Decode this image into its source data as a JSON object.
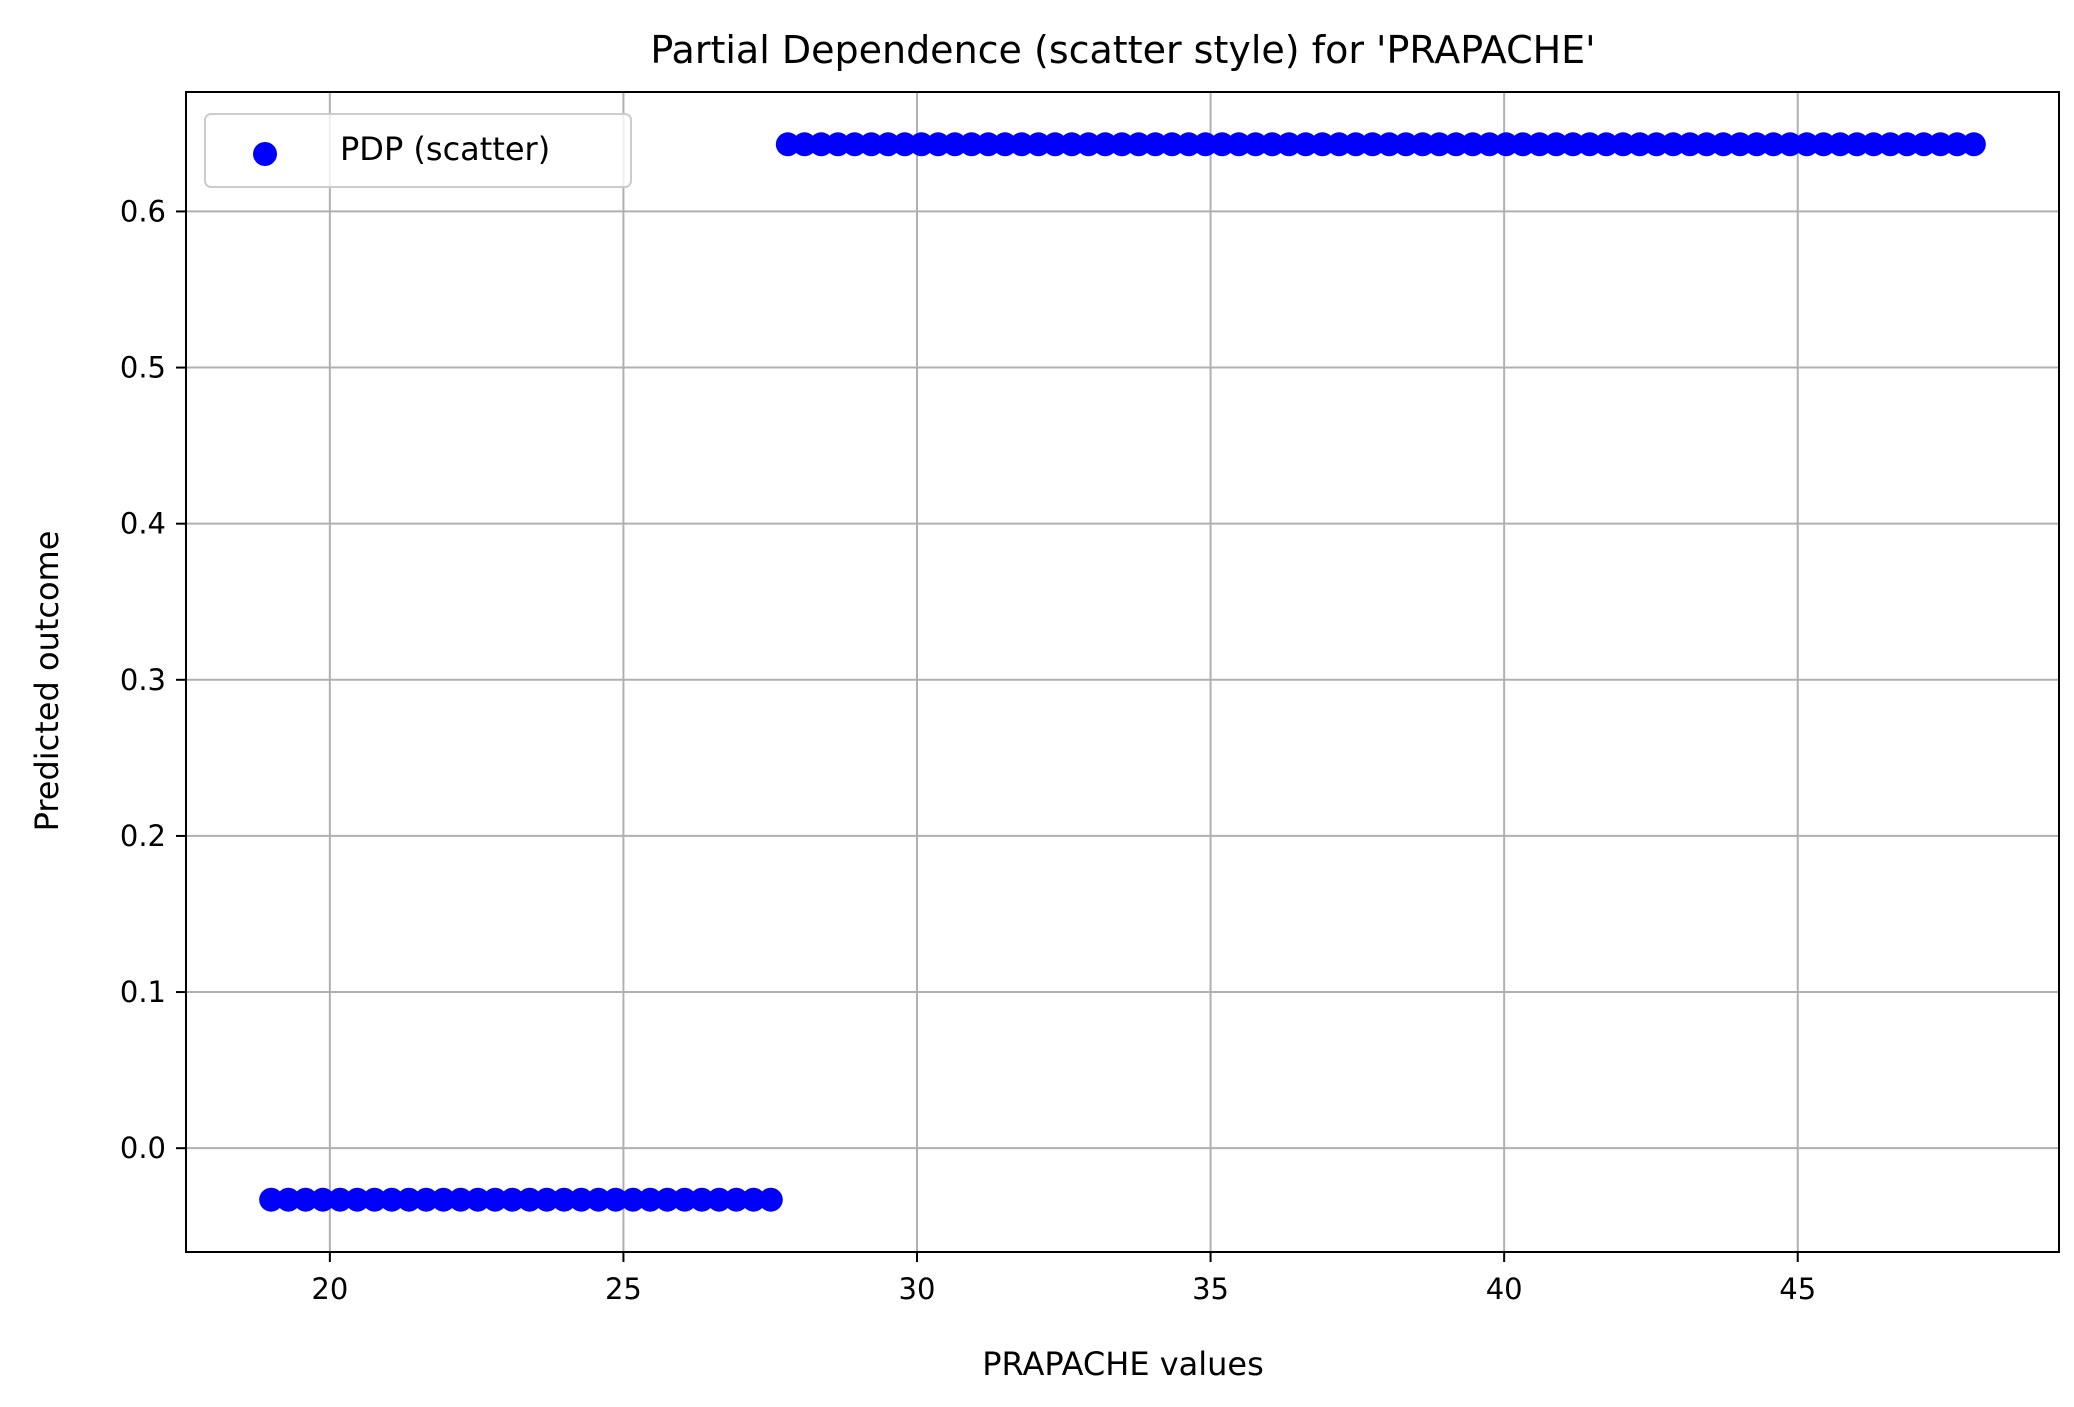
{
  "chart_data": {
    "type": "scatter",
    "title": "Partial Dependence (scatter style) for 'PRAPACHE'",
    "xlabel": "PRAPACHE values",
    "ylabel": "Predicted outcome",
    "xlim": [
      17.55,
      49.45
    ],
    "ylim": [
      -0.0665,
      0.6765
    ],
    "xticks": [
      20,
      25,
      30,
      35,
      40,
      45
    ],
    "yticks": [
      0.0,
      0.1,
      0.2,
      0.3,
      0.4,
      0.5,
      0.6
    ],
    "xtick_labels": [
      "20",
      "25",
      "30",
      "35",
      "40",
      "45"
    ],
    "ytick_labels": [
      "0.0",
      "0.1",
      "0.2",
      "0.3",
      "0.4",
      "0.5",
      "0.6"
    ],
    "grid": true,
    "legend": {
      "position": "top-left"
    },
    "series": [
      {
        "name": "PDP (scatter)",
        "color": "#0000ff",
        "segments": [
          {
            "x_start": 19.0,
            "x_end": 27.51,
            "count": 30,
            "y": -0.033
          },
          {
            "x_start": 27.8,
            "x_end": 48.0,
            "count": 72,
            "y": 0.643
          }
        ]
      }
    ]
  }
}
